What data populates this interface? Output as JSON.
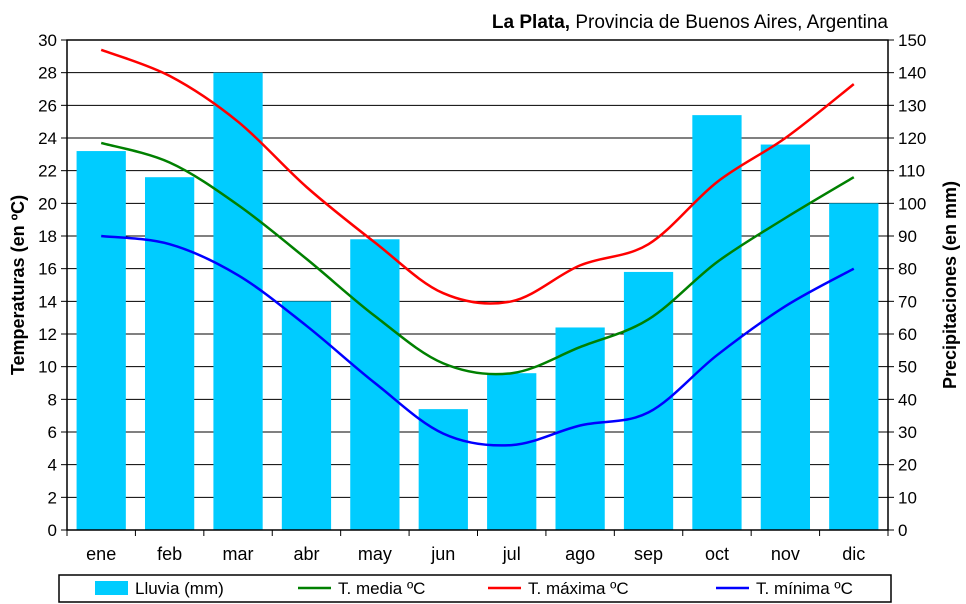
{
  "chart_data": {
    "type": "bar+line",
    "title_bold": "La Plata,",
    "title_rest": " Provincia de Buenos Aires, Argentina",
    "ylabel_left": "Temperaturas (en ºC)",
    "ylabel_right": "Precipitaciones (en mm)",
    "ylim_left": [
      0,
      30
    ],
    "ylim_right": [
      0,
      150
    ],
    "yticks_left": [
      "0",
      "2",
      "4",
      "6",
      "8",
      "10",
      "12",
      "14",
      "16",
      "18",
      "20",
      "22",
      "24",
      "26",
      "28",
      "30"
    ],
    "yticks_right": [
      "0",
      "10",
      "20",
      "30",
      "40",
      "50",
      "60",
      "70",
      "80",
      "90",
      "100",
      "110",
      "120",
      "130",
      "140",
      "150"
    ],
    "categories": [
      "ene",
      "feb",
      "mar",
      "abr",
      "may",
      "jun",
      "jul",
      "ago",
      "sep",
      "oct",
      "nov",
      "dic"
    ],
    "grid": true,
    "legend_placement": "bottom",
    "bars": {
      "name": "Lluvia (mm)",
      "color": "#00ccff",
      "values": [
        116,
        108,
        140,
        70,
        89,
        37,
        48,
        62,
        79,
        127,
        118,
        100
      ]
    },
    "series": [
      {
        "name": "T. media ºC",
        "color": "#008000",
        "values": [
          23.7,
          22.5,
          19.9,
          16.6,
          13.1,
          10.2,
          9.6,
          11.2,
          12.9,
          16.4,
          19.1,
          21.6
        ]
      },
      {
        "name": "T. máxima ºC",
        "color": "#ff0000",
        "values": [
          29.4,
          27.8,
          25.0,
          21.0,
          17.6,
          14.5,
          14.0,
          16.2,
          17.5,
          21.3,
          24.0,
          27.3
        ]
      },
      {
        "name": "T. mínima ºC",
        "color": "#0000ff",
        "values": [
          18.0,
          17.5,
          15.6,
          12.5,
          9.0,
          5.9,
          5.2,
          6.4,
          7.2,
          10.7,
          13.7,
          16.0
        ]
      }
    ]
  }
}
